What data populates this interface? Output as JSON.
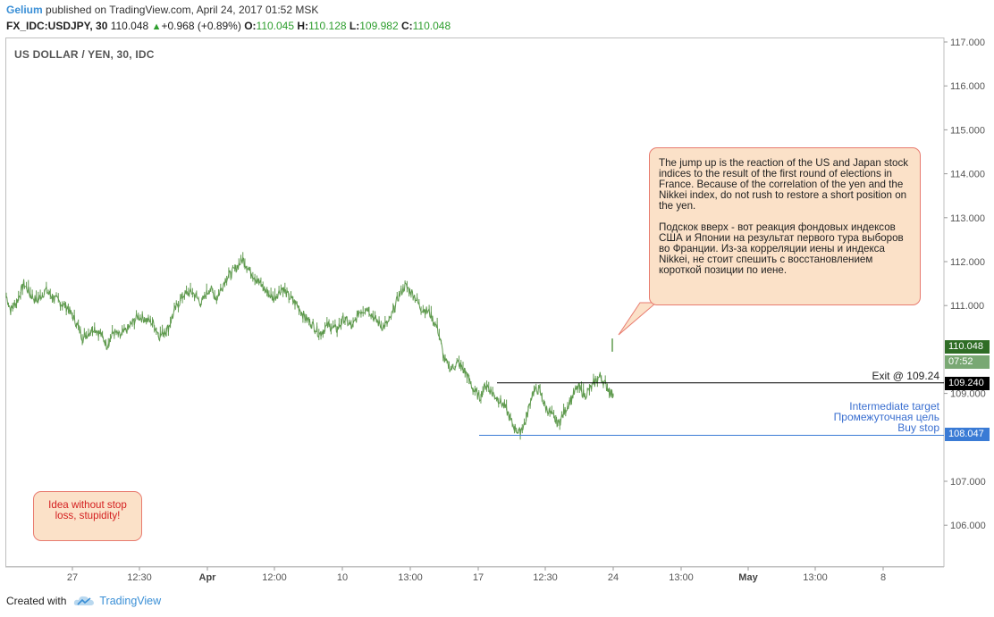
{
  "header": {
    "author": "Gelium",
    "published_text": "published on TradingView.com, April 24, 2017 01:52 MSK",
    "symbol": "FX_IDC:USDJPY, 30",
    "last": "110.048",
    "change_arrow": "▲",
    "change": "+0.968 (+0.89%)",
    "open_label": "O:",
    "open": "110.045",
    "high_label": "H:",
    "high": "110.128",
    "low_label": "L:",
    "low": "109.982",
    "close_label": "C:",
    "close": "110.048"
  },
  "series_title": "US DOLLAR / YEN, 30, IDC",
  "annotations": {
    "note_en": "The jump up is the reaction of the US and Japan stock indices to the result of the first round of elections in France. Because of the correlation of the yen and the Nikkei index, do not rush to restore a short position on the yen.",
    "note_ru": "Подскок вверх - вот реакция фондовых индексов США и Японии на результат первого тура выборов во Франции. Из-за корреляции иены и индекса Nikkei, не стоит спешить с восстановлением короткой позиции по иене.",
    "idea_note": "Idea without stop loss, stupidity!",
    "exit_label": "Exit @ 109.24",
    "target_label_en": "Intermediate target",
    "target_label_ru": "Промежуточная цель",
    "buy_stop_label": "Buy stop"
  },
  "price_tags": {
    "last": "110.048",
    "countdown": "07:52",
    "exit": "109.240",
    "buy_stop": "108.047"
  },
  "footer": {
    "created_with": "Created with",
    "brand": "TradingView",
    "logo_icon": "tradingview-cloud-logo"
  },
  "colors": {
    "series": "#5f9a4e",
    "exit_line": "#000000",
    "buy_stop_line": "#3a7bd5",
    "note_fill": "#fbe1c8",
    "note_border": "#e87b6f"
  },
  "chart_data": {
    "type": "line",
    "title": "US DOLLAR / YEN, 30, IDC",
    "xlabel": "",
    "ylabel": "",
    "ylim": [
      105.0,
      117.0
    ],
    "y_ticks": [
      "117.000",
      "116.000",
      "115.000",
      "114.000",
      "113.000",
      "112.000",
      "111.000",
      "109.000",
      "107.000",
      "106.000"
    ],
    "x_ticks": [
      {
        "label": "27",
        "bold": false
      },
      {
        "label": "12:30",
        "bold": false
      },
      {
        "label": "Apr",
        "bold": true
      },
      {
        "label": "12:00",
        "bold": false
      },
      {
        "label": "10",
        "bold": false
      },
      {
        "label": "13:00",
        "bold": false
      },
      {
        "label": "17",
        "bold": false
      },
      {
        "label": "12:30",
        "bold": false
      },
      {
        "label": "24",
        "bold": false
      },
      {
        "label": "13:00",
        "bold": false
      },
      {
        "label": "May",
        "bold": true
      },
      {
        "label": "13:00",
        "bold": false
      },
      {
        "label": "8",
        "bold": false
      }
    ],
    "horizontal_lines": [
      {
        "name": "Exit",
        "value": 109.24
      },
      {
        "name": "Buy stop",
        "value": 108.047
      }
    ],
    "series": [
      {
        "values_index": [
          0,
          2,
          5,
          8,
          11,
          14,
          18,
          21,
          25,
          28,
          32,
          35,
          40,
          43,
          46,
          49,
          52,
          56,
          60,
          63,
          67,
          70,
          74,
          77,
          81,
          85,
          89,
          93,
          96,
          100,
          104,
          108,
          111,
          115,
          119,
          122,
          126,
          129,
          133,
          136,
          140,
          143,
          147,
          151,
          154,
          158,
          161,
          165,
          168,
          172,
          175,
          179,
          182,
          186,
          189,
          193,
          197,
          200,
          203,
          206,
          210,
          213,
          216,
          219,
          222,
          225,
          228,
          231,
          234,
          237,
          240,
          243,
          246,
          249,
          252,
          255,
          258,
          261,
          264,
          268,
          271,
          274,
          277
        ],
        "values": [
          111.22,
          110.9,
          111.1,
          111.5,
          111.25,
          111.1,
          111.35,
          111.2,
          111.05,
          110.95,
          110.6,
          110.25,
          110.5,
          110.35,
          110.1,
          110.4,
          110.3,
          110.5,
          110.75,
          110.7,
          110.6,
          110.3,
          110.5,
          110.9,
          111.25,
          111.3,
          111.05,
          111.4,
          111.15,
          111.6,
          111.8,
          112.05,
          111.8,
          111.55,
          111.3,
          111.15,
          111.4,
          111.2,
          111.0,
          110.75,
          110.55,
          110.35,
          110.55,
          110.45,
          110.7,
          110.5,
          110.85,
          110.95,
          110.7,
          110.5,
          110.65,
          111.2,
          111.45,
          111.25,
          110.95,
          110.85,
          110.45,
          109.75,
          109.55,
          109.7,
          109.45,
          109.1,
          108.9,
          109.2,
          109.0,
          108.85,
          108.65,
          108.3,
          108.1,
          108.35,
          109.0,
          109.1,
          108.7,
          108.5,
          108.3,
          108.6,
          108.9,
          109.15,
          108.95,
          109.2,
          109.4,
          109.15,
          108.95
        ]
      }
    ],
    "gap_jump": {
      "value_from": 109.95,
      "value_to": 110.25
    }
  }
}
